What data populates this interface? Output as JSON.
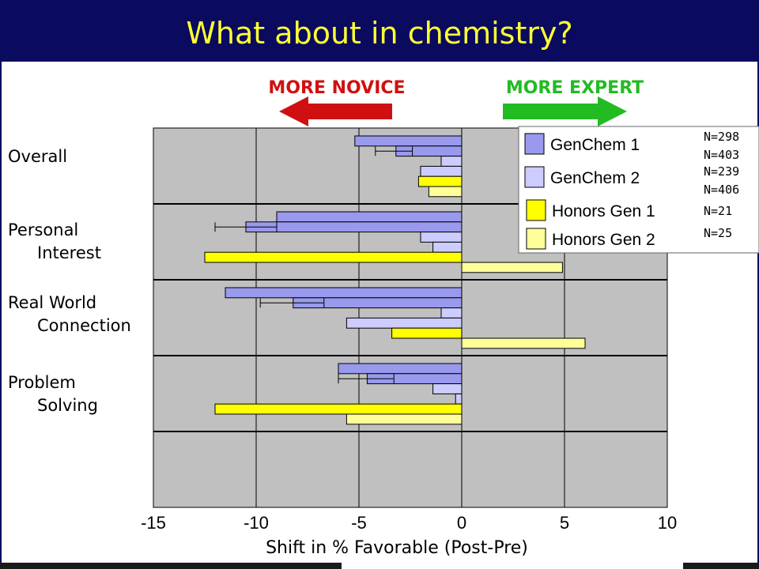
{
  "slide": {
    "title": "What about in chemistry?"
  },
  "direction": {
    "novice_label": "MORE NOVICE",
    "expert_label": "MORE EXPERT",
    "novice_color": "#d01010",
    "expert_color": "#22bb22"
  },
  "chart_data": {
    "type": "bar",
    "orientation": "horizontal",
    "categories": [
      [
        "Overall"
      ],
      [
        "Personal",
        "Interest"
      ],
      [
        "Real World",
        "Connection"
      ],
      [
        "Problem",
        "Solving"
      ]
    ],
    "xlabel": "Shift in % Favorable (Post-Pre)",
    "xlim": [
      -15,
      10
    ],
    "xticks": [
      "-15",
      "-10",
      "-5",
      "0",
      "5",
      "10"
    ],
    "grid": true,
    "legend_position": "top-right",
    "series": [
      {
        "name": "GenChem 1",
        "n": "N=298",
        "color": "#9999ee",
        "values": [
          -5.2,
          -9.0,
          -11.5,
          -6.0
        ]
      },
      {
        "name": "GenChem 1",
        "n": "N=403",
        "color": "#9999ee",
        "values": [
          -3.2,
          -10.5,
          -8.2,
          -4.6
        ],
        "errors": [
          [
            -4.2,
            -2.4
          ],
          [
            -12.0,
            -9.0
          ],
          [
            -9.8,
            -6.7
          ],
          [
            -6.0,
            -3.3
          ]
        ]
      },
      {
        "name": "GenChem 2",
        "n": "N=239",
        "color": "#ccccff",
        "values": [
          -1.0,
          -2.0,
          -1.0,
          -1.4
        ]
      },
      {
        "name": "GenChem 2",
        "n": "N=406",
        "color": "#ccccff",
        "values": [
          -2.0,
          -1.4,
          -5.6,
          -0.3
        ]
      },
      {
        "name": "Honors Gen 1",
        "n": "N=21",
        "color": "#ffff00",
        "values": [
          -2.1,
          -12.5,
          -3.4,
          -12.0
        ]
      },
      {
        "name": "Honors Gen 2",
        "n": "N=25",
        "color": "#ffff99",
        "values": [
          -1.6,
          4.9,
          6.0,
          -5.6
        ]
      }
    ],
    "legend": [
      {
        "label": "GenChem 1",
        "color": "#9999ee",
        "n": [
          "N=298",
          "N=403"
        ]
      },
      {
        "label": "GenChem 2",
        "color": "#ccccff",
        "n": [
          "N=239",
          "N=406"
        ]
      },
      {
        "label": "Honors Gen 1",
        "color": "#ffff00",
        "n": [
          "N=21"
        ]
      },
      {
        "label": "Honors Gen 2",
        "color": "#ffff99",
        "n": [
          "N=25"
        ]
      }
    ]
  }
}
